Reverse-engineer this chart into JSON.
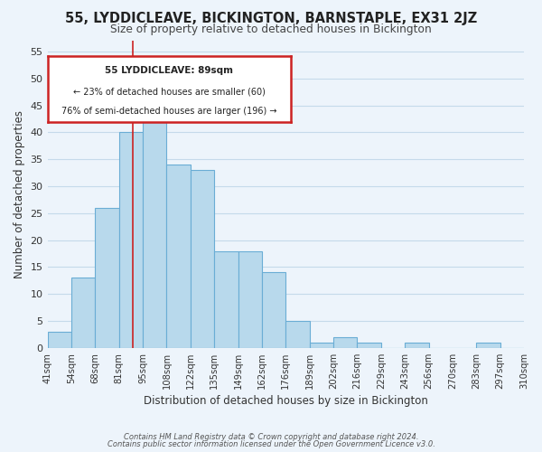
{
  "title": "55, LYDDICLEAVE, BICKINGTON, BARNSTAPLE, EX31 2JZ",
  "subtitle": "Size of property relative to detached houses in Bickington",
  "xlabel": "Distribution of detached houses by size in Bickington",
  "ylabel": "Number of detached properties",
  "bin_edges": [
    "41sqm",
    "54sqm",
    "68sqm",
    "81sqm",
    "95sqm",
    "108sqm",
    "122sqm",
    "135sqm",
    "149sqm",
    "162sqm",
    "176sqm",
    "189sqm",
    "202sqm",
    "216sqm",
    "229sqm",
    "243sqm",
    "256sqm",
    "270sqm",
    "283sqm",
    "297sqm",
    "310sqm"
  ],
  "bar_heights": [
    3,
    13,
    26,
    40,
    45,
    34,
    33,
    18,
    18,
    14,
    5,
    1,
    2,
    1,
    0,
    1,
    0,
    0,
    1,
    0
  ],
  "bar_color": "#b8d9ec",
  "bar_edge_color": "#6aadd5",
  "annotation_title": "55 LYDDICLEAVE: 89sqm",
  "annotation_line1": "← 23% of detached houses are smaller (60)",
  "annotation_line2": "76% of semi-detached houses are larger (196) →",
  "annotation_box_edge": "#cc2222",
  "redline_x": 3.7,
  "ylim": [
    0,
    57
  ],
  "yticks": [
    0,
    5,
    10,
    15,
    20,
    25,
    30,
    35,
    40,
    45,
    50,
    55
  ],
  "footer1": "Contains HM Land Registry data © Crown copyright and database right 2024.",
  "footer2": "Contains public sector information licensed under the Open Government Licence v3.0.",
  "bg_color": "#edf4fb",
  "grid_color": "#c5daea"
}
